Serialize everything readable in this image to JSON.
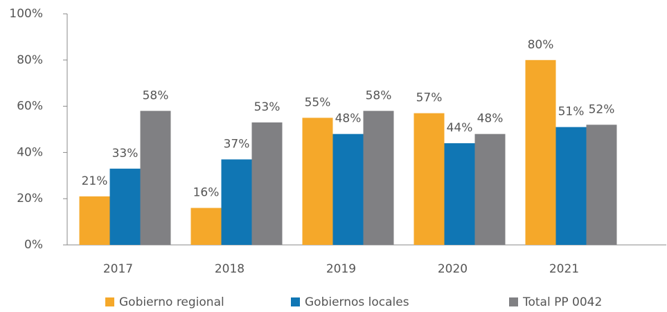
{
  "chart_data": {
    "type": "bar",
    "categories": [
      "2017",
      "2018",
      "2019",
      "2020",
      "2021"
    ],
    "series": [
      {
        "name": "Gobierno regional",
        "color": "#f5a82a",
        "values": [
          21,
          16,
          55,
          57,
          80
        ],
        "value_labels": [
          "21%",
          "16%",
          "55%",
          "57%",
          "80%"
        ]
      },
      {
        "name": "Gobiernos locales",
        "color": "#1076b4",
        "values": [
          33,
          37,
          48,
          44,
          51
        ],
        "value_labels": [
          "33%",
          "37%",
          "48%",
          "44%",
          "51%"
        ]
      },
      {
        "name": "Total PP 0042",
        "color": "#808083",
        "values": [
          58,
          53,
          58,
          48,
          52
        ],
        "value_labels": [
          "58%",
          "53%",
          "58%",
          "48%",
          "52%"
        ]
      }
    ],
    "ylim": [
      0,
      100
    ],
    "yticks": [
      {
        "value": 0,
        "label": "0%"
      },
      {
        "value": 20,
        "label": "20%"
      },
      {
        "value": 40,
        "label": "40%"
      },
      {
        "value": 60,
        "label": "60%"
      },
      {
        "value": 80,
        "label": "80%"
      },
      {
        "value": 100,
        "label": "100%"
      }
    ],
    "grid": false,
    "legend": "bottom"
  }
}
